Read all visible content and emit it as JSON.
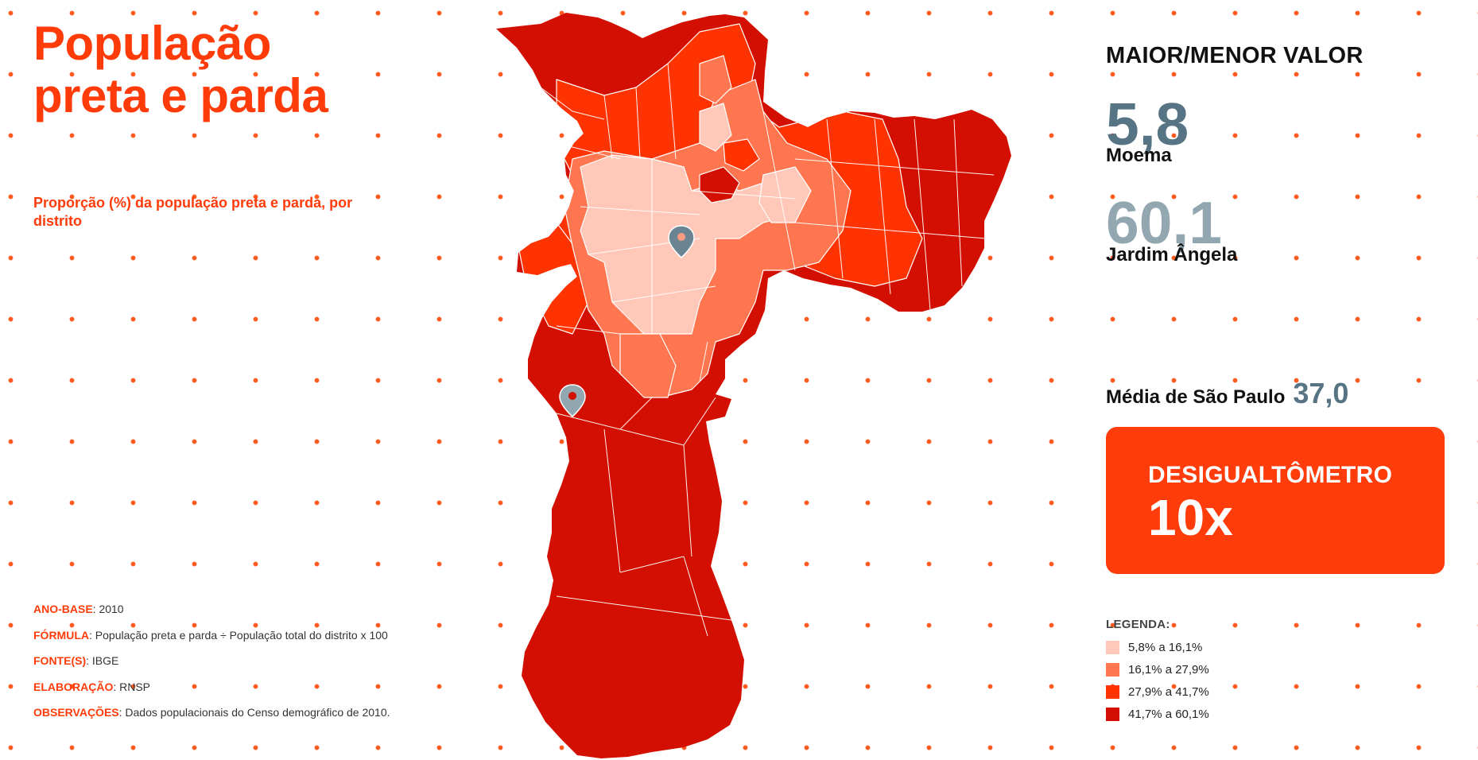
{
  "title": "População\npreta e parda",
  "subtitle": "Proporção (%) da população preta e parda, por distrito",
  "meta": [
    {
      "key": "ANO-BASE",
      "value": "2010"
    },
    {
      "key": "FÓRMULA",
      "value": "População preta e parda ÷ População total do distrito x 100"
    },
    {
      "key": "FONTE(S)",
      "value": "IBGE"
    },
    {
      "key": "ELABORAÇÃO",
      "value": "RNSP"
    },
    {
      "key": "OBSERVAÇÕES",
      "value": "Dados populacionais do Censo demográfico de 2010."
    }
  ],
  "stats": {
    "heading": "MAIOR/MENOR VALOR",
    "min": {
      "value": "5,8",
      "district": "Moema"
    },
    "max": {
      "value": "60,1",
      "district": "Jardim Ângela"
    },
    "average": {
      "label": "Média de São Paulo",
      "value": "37,0"
    }
  },
  "meter": {
    "label": "DESIGUALTÔMETRO",
    "value": "10x"
  },
  "legend": {
    "title": "LEGENDA:",
    "items": [
      {
        "label": "5,8% a 16,1%",
        "color": "#ffc8b8"
      },
      {
        "label": "16,1% a 27,9%",
        "color": "#ff7650"
      },
      {
        "label": "27,9% a 41,7%",
        "color": "#ff3300"
      },
      {
        "label": "41,7% a 60,1%",
        "color": "#d20f00"
      }
    ]
  },
  "colors": {
    "accent": "#ff3b0a",
    "slate": "#567483",
    "slate_light": "#93a7b1",
    "pin_fill": "#6a8591"
  },
  "icons": [
    "map-pin-icon"
  ]
}
